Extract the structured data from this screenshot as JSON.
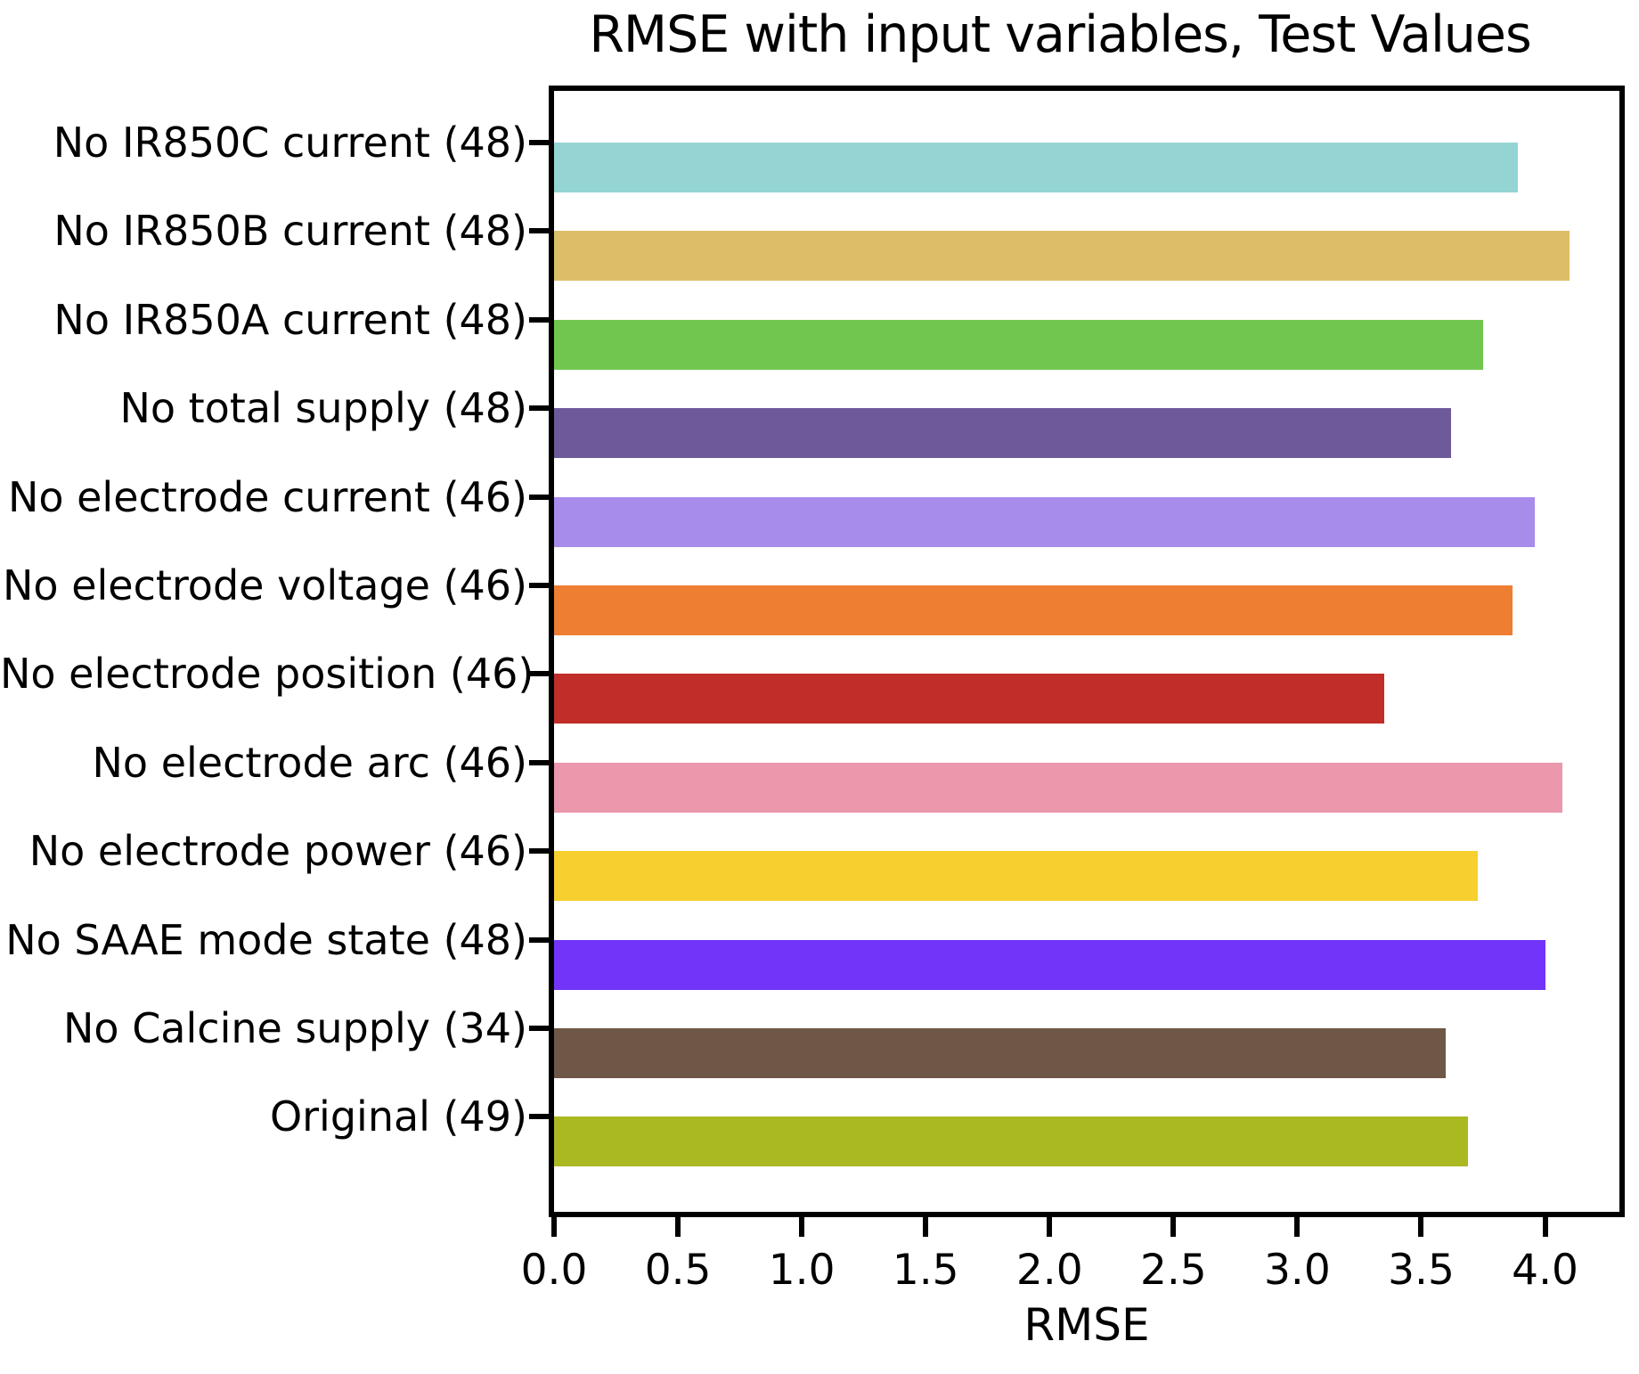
{
  "chart_data": {
    "type": "bar",
    "orientation": "horizontal",
    "title": "RMSE with input variables, Test Values",
    "xlabel": "RMSE",
    "ylabel": "",
    "categories": [
      "No IR850C current (48)",
      "No IR850B current (48)",
      "No IR850A current (48)",
      "No total supply (48)",
      "No electrode current (46)",
      "No electrode voltage (46)",
      "No electrode position (46)",
      "No electrode arc (46)",
      "No electrode power (46)",
      "No SAAE mode state (48)",
      "No Calcine supply (34)",
      "Original (49)"
    ],
    "values": [
      3.89,
      4.1,
      3.75,
      3.62,
      3.96,
      3.87,
      3.35,
      4.07,
      3.73,
      4.0,
      3.6,
      3.69
    ],
    "bar_colors": [
      "#94d5d4",
      "#ddbe68",
      "#70c64f",
      "#6d5a9a",
      "#a88ceb",
      "#ee7e31",
      "#c12d28",
      "#eb97ac",
      "#f7d02f",
      "#7134f8",
      "#6f5747",
      "#aab822"
    ],
    "xlim": [
      0,
      4.3
    ],
    "xticks": [
      "0.0",
      "0.5",
      "1.0",
      "1.5",
      "2.0",
      "2.5",
      "3.0",
      "3.5",
      "4.0"
    ],
    "grid": false,
    "legend": null,
    "axis_color": "#000000"
  }
}
